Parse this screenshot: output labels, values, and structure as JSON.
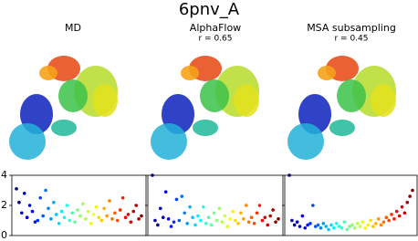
{
  "title": "6pnv_A",
  "chart_data": [
    {
      "type": "scatter",
      "title": "MD",
      "colormap": "jet",
      "ylim": [
        0,
        4
      ],
      "yticks": [
        0,
        2,
        4
      ],
      "values": [
        3.1,
        2.2,
        1.5,
        2.8,
        1.2,
        2.0,
        1.6,
        0.9,
        1.0,
        2.5,
        1.3,
        3.0,
        1.8,
        1.1,
        2.2,
        1.4,
        0.8,
        1.6,
        1.2,
        2.0,
        1.0,
        1.5,
        0.9,
        1.7,
        1.3,
        2.1,
        1.1,
        1.6,
        0.8,
        1.4,
        1.9,
        1.2,
        1.0,
        1.8,
        1.3,
        2.3,
        1.1,
        1.5,
        1.0,
        1.7,
        2.5,
        1.2,
        1.4,
        0.9,
        1.6,
        2.0,
        1.1,
        1.3
      ]
    },
    {
      "type": "scatter",
      "title": "AlphaFlow",
      "annotation": "r = 0.65",
      "colormap": "jet",
      "ylim": [
        0,
        4
      ],
      "yticks": [
        0,
        2,
        4
      ],
      "values": [
        4.0,
        1.0,
        0.7,
        1.8,
        1.2,
        2.9,
        1.1,
        0.6,
        0.9,
        2.4,
        1.0,
        2.6,
        1.5,
        0.8,
        1.9,
        1.2,
        0.7,
        1.3,
        1.0,
        1.9,
        0.8,
        1.2,
        0.7,
        1.5,
        1.0,
        1.8,
        0.9,
        1.3,
        0.6,
        1.1,
        1.6,
        1.0,
        0.8,
        1.5,
        1.1,
        2.0,
        0.9,
        1.2,
        0.8,
        1.5,
        2.0,
        1.0,
        1.2,
        0.7,
        1.3,
        1.7,
        0.9,
        1.1
      ]
    },
    {
      "type": "scatter",
      "title": "MSA subsampling",
      "annotation": "r = 0.45",
      "colormap": "jet",
      "ylim": [
        0,
        4
      ],
      "yticks": [
        0,
        2,
        4
      ],
      "values": [
        4.0,
        1.0,
        0.7,
        0.9,
        0.6,
        1.3,
        0.5,
        0.7,
        0.8,
        2.0,
        0.6,
        0.7,
        0.5,
        0.8,
        0.6,
        0.4,
        0.7,
        0.5,
        0.8,
        0.6,
        0.5,
        0.9,
        0.4,
        0.6,
        0.7,
        0.5,
        0.8,
        0.6,
        0.9,
        0.5,
        0.7,
        1.0,
        0.6,
        0.8,
        1.1,
        0.7,
        0.9,
        1.2,
        1.0,
        1.4,
        1.1,
        1.6,
        1.3,
        1.9,
        1.5,
        2.2,
        2.6,
        3.0
      ]
    }
  ]
}
